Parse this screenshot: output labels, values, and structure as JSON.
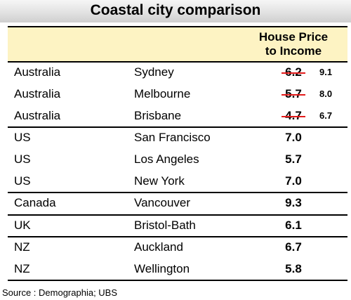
{
  "title": "Coastal city comparison",
  "table": {
    "header": {
      "country": "",
      "city": "",
      "metric_line1": "House Price",
      "metric_line2": "to Income"
    },
    "rows": [
      {
        "country": "Australia",
        "city": "Sydney",
        "value": "6.2",
        "revised_value": "9.1",
        "struck_through": true
      },
      {
        "country": "Australia",
        "city": "Melbourne",
        "value": "5.7",
        "revised_value": "8.0",
        "struck_through": true
      },
      {
        "country": "Australia",
        "city": "Brisbane",
        "value": "4.7",
        "revised_value": "6.7",
        "struck_through": true
      },
      {
        "country": "US",
        "city": "San Francisco",
        "value": "7.0"
      },
      {
        "country": "US",
        "city": "Los Angeles",
        "value": "5.7"
      },
      {
        "country": "US",
        "city": "New York",
        "value": "7.0"
      },
      {
        "country": "Canada",
        "city": "Vancouver",
        "value": "9.3"
      },
      {
        "country": "UK",
        "city": "Bristol-Bath",
        "value": "6.1"
      },
      {
        "country": "NZ",
        "city": "Auckland",
        "value": "6.7"
      },
      {
        "country": "NZ",
        "city": "Wellington",
        "value": "5.8"
      }
    ]
  },
  "source": "Source : Demographia; UBS",
  "colors": {
    "header_fill": "#fdf3c3",
    "strike_line": "#e31b1b"
  }
}
